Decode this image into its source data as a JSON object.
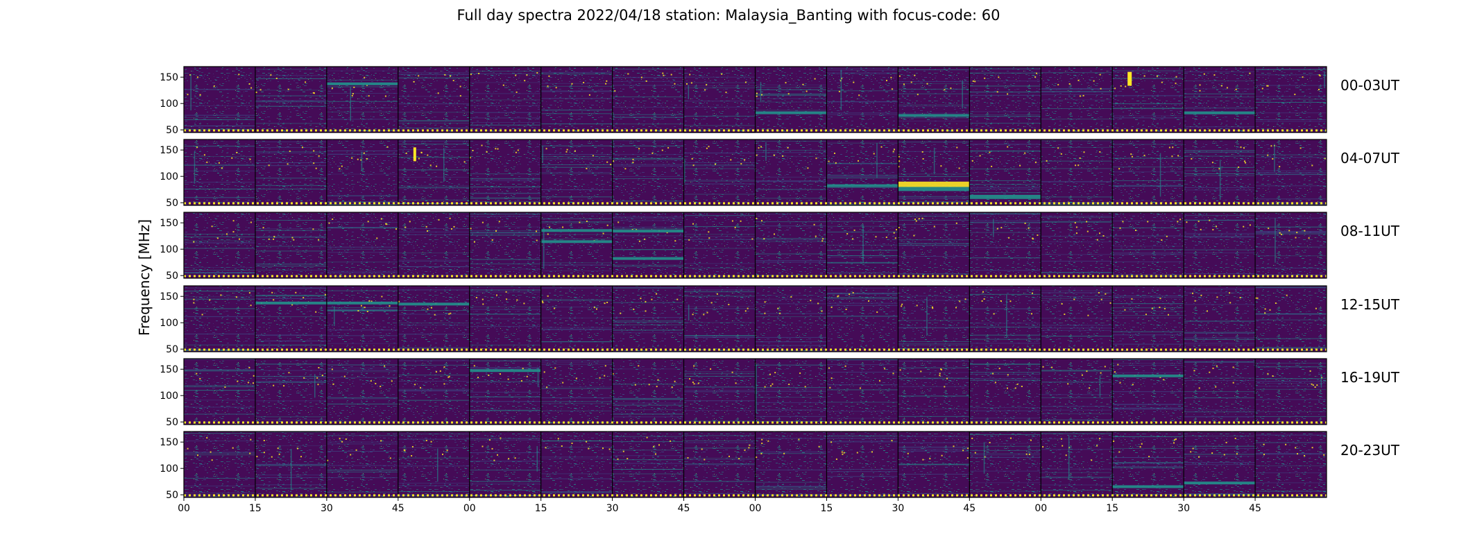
{
  "chart_data": {
    "type": "heatmap",
    "title": "Full day spectra 2022/04/18 station: Malaysia_Banting with focus-code: 60",
    "ylabel": "Frequency [MHz]",
    "xlabel": "",
    "ylim": [
      45,
      170
    ],
    "yticks": [
      50,
      100,
      150
    ],
    "xtick_labels": [
      "00",
      "15",
      "30",
      "45",
      "00",
      "15",
      "30",
      "45",
      "00",
      "15",
      "30",
      "45",
      "00",
      "15",
      "30",
      "45"
    ],
    "panels_per_row": 16,
    "panel_minutes": 15,
    "rows": [
      {
        "label": "00-03UT",
        "bright_bursts": [
          [
            13,
            160,
            6
          ]
        ],
        "bands": [
          [
            2,
            140,
            1
          ],
          [
            8,
            85,
            1
          ],
          [
            10,
            80,
            1
          ],
          [
            14,
            85,
            1
          ]
        ]
      },
      {
        "label": "04-07UT",
        "bright_bursts": [
          [
            3,
            155,
            4
          ]
        ],
        "bands": [
          [
            10,
            90,
            3
          ],
          [
            10,
            80,
            2
          ],
          [
            11,
            65,
            2
          ],
          [
            9,
            85,
            1
          ]
        ]
      },
      {
        "label": "08-11UT",
        "bright_bursts": [],
        "bands": [
          [
            5,
            138,
            1
          ],
          [
            6,
            137,
            1
          ],
          [
            5,
            117,
            1
          ],
          [
            6,
            85,
            1
          ]
        ]
      },
      {
        "label": "12-15UT",
        "bright_bursts": [],
        "bands": [
          [
            1,
            140,
            1
          ],
          [
            2,
            140,
            1
          ],
          [
            3,
            138,
            1
          ]
        ]
      },
      {
        "label": "16-19UT",
        "bright_bursts": [],
        "bands": [
          [
            4,
            150,
            1
          ],
          [
            13,
            140,
            1
          ]
        ]
      },
      {
        "label": "20-23UT",
        "bright_bursts": [],
        "bands": [
          [
            13,
            68,
            1
          ],
          [
            14,
            75,
            1
          ]
        ]
      }
    ],
    "colormap": [
      "#440154",
      "#3b528b",
      "#21918c",
      "#5ec962",
      "#fde725"
    ],
    "background_color": "#450b57"
  }
}
